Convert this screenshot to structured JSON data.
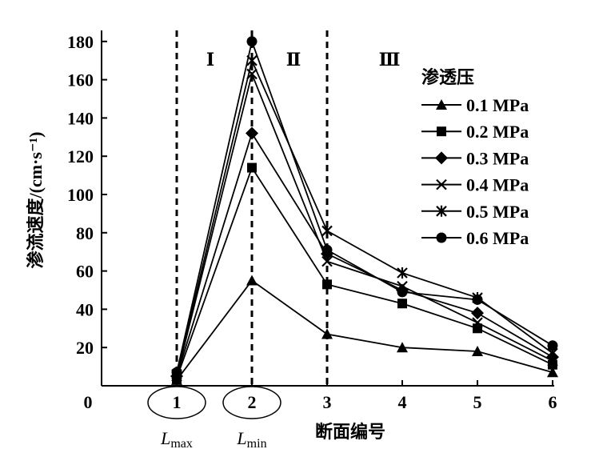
{
  "chart_data": {
    "type": "line",
    "xlabel": "断面编号",
    "ylabel": "渗流速度/(cm·s⁻¹)",
    "xlim": [
      0,
      6
    ],
    "ylim": [
      0,
      180
    ],
    "x_ticks": [
      "0",
      "1",
      "2",
      "3",
      "4",
      "5",
      "6"
    ],
    "y_ticks": [
      "20",
      "40",
      "60",
      "80",
      "100",
      "120",
      "140",
      "160",
      "180"
    ],
    "x_annotations": {
      "1": "L_max",
      "2": "L_min"
    },
    "x_annotation_main": {
      "1": "L",
      "2": "L"
    },
    "x_annotation_sub": {
      "1": "max",
      "2": "min"
    },
    "regions": [
      "Ⅰ",
      "Ⅱ",
      "Ⅲ"
    ],
    "region_boundaries": [
      1,
      2,
      3
    ],
    "legend_title": "渗透压",
    "legend_position": "right",
    "grid": false,
    "x": [
      1,
      2,
      3,
      4,
      5,
      6
    ],
    "series": [
      {
        "name": "0.1 MPa",
        "marker": "triangle",
        "values": [
          3,
          55,
          27,
          20,
          18,
          7
        ]
      },
      {
        "name": "0.2 MPa",
        "marker": "square",
        "values": [
          4,
          114,
          53,
          43,
          30,
          11
        ]
      },
      {
        "name": "0.3 MPa",
        "marker": "diamond",
        "values": [
          5,
          132,
          69,
          50,
          38,
          15
        ]
      },
      {
        "name": "0.4 MPa",
        "marker": "x",
        "values": [
          5,
          163,
          65,
          52,
          33,
          13
        ]
      },
      {
        "name": "0.5 MPa",
        "marker": "asterisk",
        "values": [
          6,
          170,
          81,
          59,
          46,
          17
        ]
      },
      {
        "name": "0.6 MPa",
        "marker": "circle",
        "values": [
          7,
          180,
          71,
          49,
          45,
          21
        ]
      }
    ],
    "color": "#000000"
  }
}
